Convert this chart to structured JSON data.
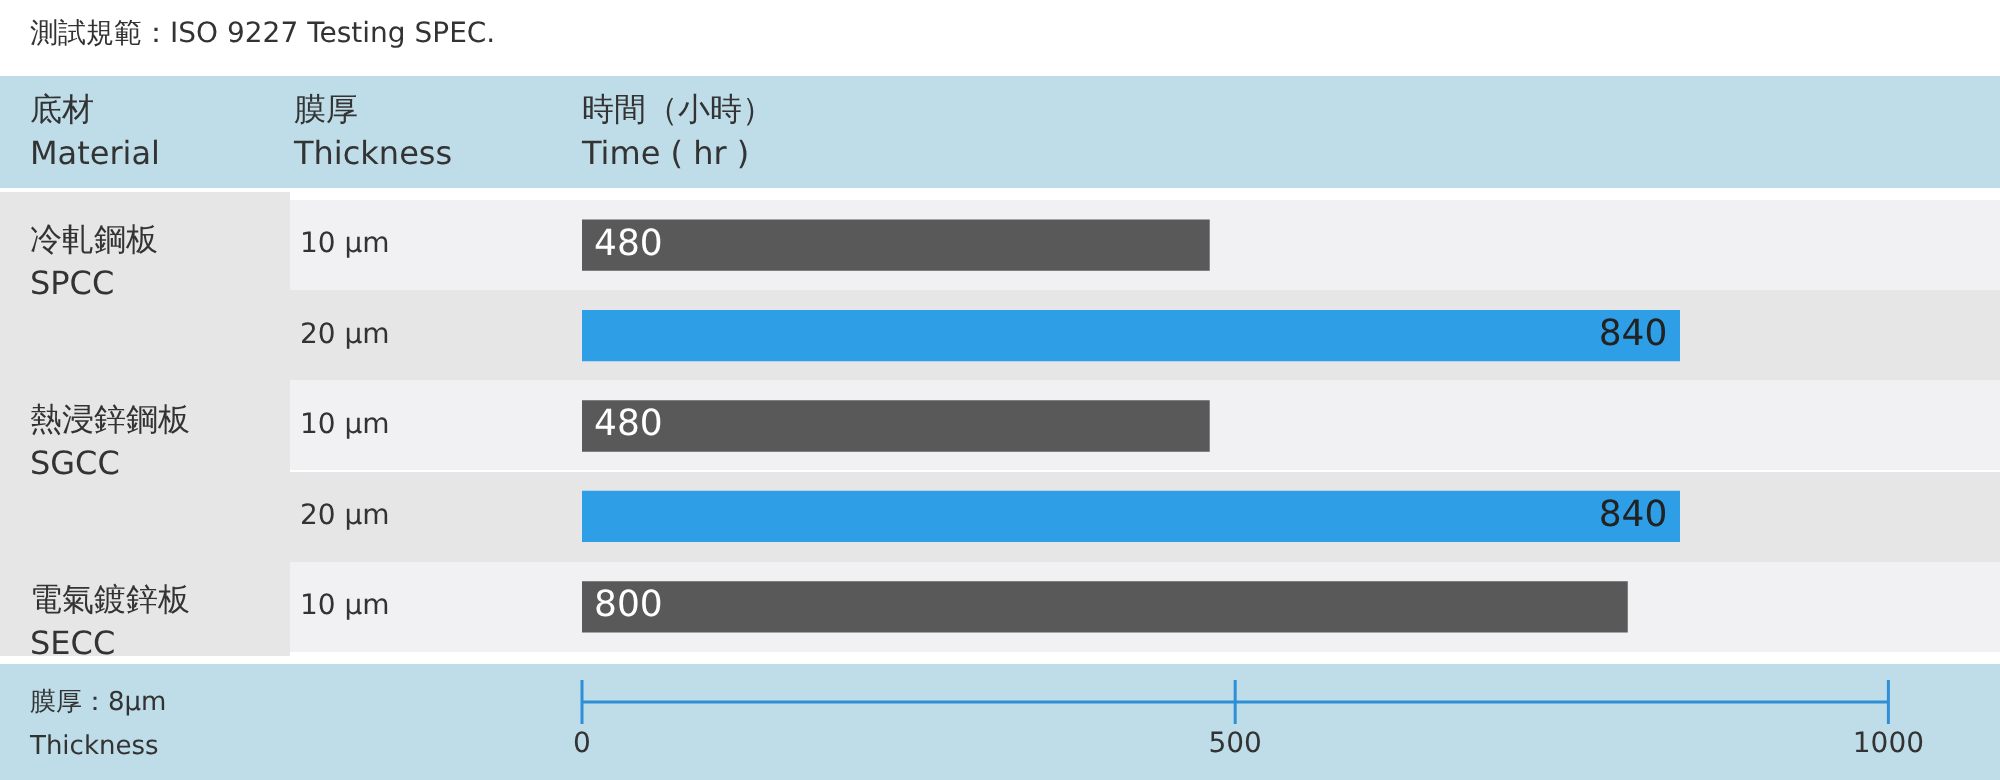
{
  "chart_data": {
    "type": "bar",
    "orientation": "horizontal",
    "title": "測試規範：ISO 9227 Testing SPEC.",
    "categories": [
      "10 μm",
      "20 μm",
      "10 μm",
      "20 μm",
      "10 μm"
    ],
    "values": [
      480,
      840,
      480,
      840,
      800
    ],
    "colors": [
      "#595959",
      "#2e9fe6",
      "#595959",
      "#2e9fe6",
      "#595959"
    ],
    "xlim": [
      0,
      1000
    ],
    "xticks": [
      0,
      500,
      1000
    ],
    "grid": false,
    "legend": false,
    "data_labels": true,
    "annotations": [
      "底材\nMaterial",
      "膜厚\nThickness",
      "時間（小時）\nTime ( hr )",
      "冷軋鋼板\nSPCC",
      "熱浸鋅鋼板\nSGCC",
      "電氣鍍鋅板\nSECC",
      "膜厚：8μm\nThickness"
    ]
  }
}
